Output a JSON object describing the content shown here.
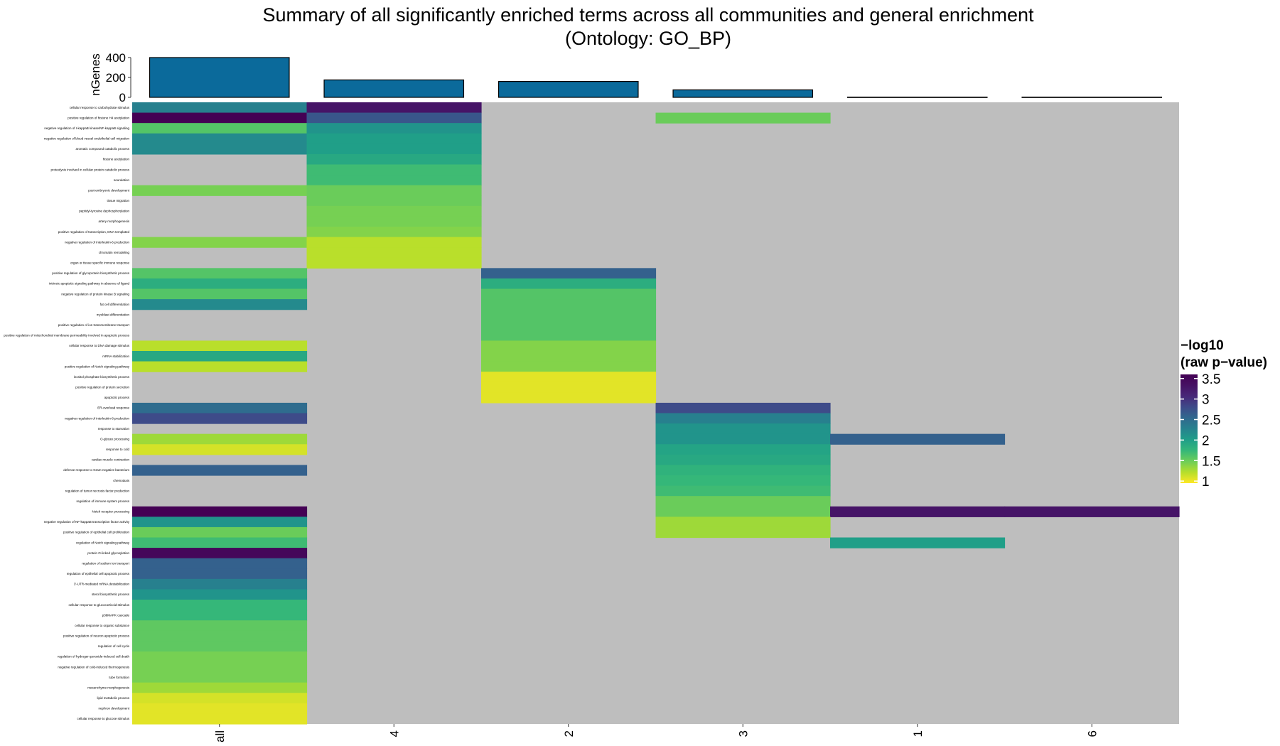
{
  "chart_data": {
    "type": "heatmap",
    "title": "Summary of all significantly enriched terms across all communities and general enrichment",
    "subtitle": "(Ontology: GO_BP)",
    "columns": [
      "all",
      "4",
      "2",
      "3",
      "1",
      "6"
    ],
    "bar_panel": {
      "type": "bar",
      "ylabel": "nGenes",
      "yticks": [
        0,
        200,
        400
      ],
      "ylim": [
        0,
        400
      ],
      "values": [
        400,
        175,
        160,
        75,
        2,
        2
      ],
      "fill": "#0b6a9b"
    },
    "legend": {
      "title_line1": "−log10",
      "title_line2": "(raw p−value)",
      "ticks": [
        "3.5",
        "3",
        "2.5",
        "2",
        "1.5",
        "1"
      ],
      "tick_values": [
        3.5,
        3,
        2.5,
        2,
        1.5,
        1
      ],
      "range": [
        0.95,
        3.6
      ],
      "na_color": "#bebebe"
    },
    "rows": [
      "cellular response to carbohydrate stimulus",
      "positive regulation of histone H4 acetylation",
      "negative regulation of I-kappaB kinase/NF-kappaB signaling",
      "negative regulation of blood vessel endothelial cell migration",
      "aromatic compound catabolic process",
      "histone acetylation",
      "proteolysis involved in cellular protein catabolic process",
      "neurulation",
      "post-embryonic development",
      "tissue migration",
      "peptidyl-tyrosine dephosphorylation",
      "artery morphogenesis",
      "positive regulation of transcription, DNA-templated",
      "negative regulation of interleukin-6 production",
      "chromatin remodeling",
      "organ or tissue specific immune response",
      "positive regulation of glycoprotein biosynthetic process",
      "intrinsic apoptotic signaling pathway in absence of ligand",
      "negative regulation of protein kinase B signaling",
      "fat cell differentiation",
      "myoblast differentiation",
      "positive regulation of ion transmembrane transport",
      "positive regulation of mitochondrial membrane permeability involved in apoptotic process",
      "cellular response to DNA damage stimulus",
      "mRNA stabilization",
      "positive regulation of Notch signaling pathway",
      "inositol phosphate biosynthetic process",
      "positive regulation of protein secretion",
      "apoptotic process",
      "ER-overload response",
      "negative regulation of interleukin-8 production",
      "response to starvation",
      "O-glycan processing",
      "response to cold",
      "cardiac muscle contraction",
      "defense response to Gram-negative bacterium",
      "chemotaxis",
      "regulation of tumor necrosis factor production",
      "regulation of immune system process",
      "Notch receptor processing",
      "negative regulation of NF-kappaB transcription factor activity",
      "positive regulation of epithelial cell proliferation",
      "regulation of Notch signaling pathway",
      "protein O-linked glycosylation",
      "regulation of sodium ion transport",
      "regulation of epithelial cell apoptotic process",
      "3'-UTR-mediated mRNA destabilization",
      "sterol biosynthetic process",
      "cellular response to glucocorticoid stimulus",
      "p38MAPK cascade",
      "cellular response to organic substance",
      "positive regulation of neuron apoptotic process",
      "regulation of cell cycle",
      "regulation of hydrogen peroxide-induced cell death",
      "negative regulation of cold-induced thermogenesis",
      "tube formation",
      "mesenchyme morphogenesis",
      "lipid metabolic process",
      "nephron development",
      "cellular response to glucose stimulus"
    ],
    "values": [
      [
        2.3,
        3.3,
        null,
        null,
        null,
        null
      ],
      [
        3.6,
        2.7,
        null,
        1.5,
        null,
        null
      ],
      [
        1.6,
        2.1,
        null,
        null,
        null,
        null
      ],
      [
        2.2,
        2.0,
        null,
        null,
        null,
        null
      ],
      [
        2.2,
        2.0,
        null,
        null,
        null,
        null
      ],
      [
        null,
        1.9,
        null,
        null,
        null,
        null
      ],
      [
        null,
        1.7,
        null,
        null,
        null,
        null
      ],
      [
        null,
        1.7,
        null,
        null,
        null,
        null
      ],
      [
        1.45,
        1.5,
        null,
        null,
        null,
        null
      ],
      [
        null,
        1.5,
        null,
        null,
        null,
        null
      ],
      [
        null,
        1.45,
        null,
        null,
        null,
        null
      ],
      [
        null,
        1.45,
        null,
        null,
        null,
        null
      ],
      [
        null,
        1.4,
        null,
        null,
        null,
        null
      ],
      [
        1.4,
        1.2,
        null,
        null,
        null,
        null
      ],
      [
        null,
        1.2,
        null,
        null,
        null,
        null
      ],
      [
        null,
        1.2,
        null,
        null,
        null,
        null
      ],
      [
        1.6,
        null,
        2.6,
        null,
        null,
        null
      ],
      [
        1.85,
        null,
        1.85,
        null,
        null,
        null
      ],
      [
        1.6,
        null,
        1.6,
        null,
        null,
        null
      ],
      [
        2.2,
        null,
        1.6,
        null,
        null,
        null
      ],
      [
        null,
        null,
        1.6,
        null,
        null,
        null
      ],
      [
        null,
        null,
        1.6,
        null,
        null,
        null
      ],
      [
        null,
        null,
        1.6,
        null,
        null,
        null
      ],
      [
        1.2,
        null,
        1.4,
        null,
        null,
        null
      ],
      [
        1.9,
        null,
        1.4,
        null,
        null,
        null
      ],
      [
        1.2,
        null,
        1.4,
        null,
        null,
        null
      ],
      [
        null,
        null,
        1.05,
        null,
        null,
        null
      ],
      [
        null,
        null,
        1.05,
        null,
        null,
        null
      ],
      [
        null,
        null,
        1.05,
        null,
        null,
        null
      ],
      [
        2.5,
        null,
        null,
        2.8,
        null,
        null
      ],
      [
        2.8,
        null,
        null,
        2.3,
        null,
        null
      ],
      [
        null,
        null,
        null,
        2.1,
        null,
        null
      ],
      [
        1.3,
        null,
        null,
        2.1,
        2.6,
        null
      ],
      [
        1.1,
        null,
        null,
        1.95,
        null,
        null
      ],
      [
        null,
        null,
        null,
        1.9,
        null,
        null
      ],
      [
        2.6,
        null,
        null,
        1.8,
        null,
        null
      ],
      [
        null,
        null,
        null,
        1.75,
        null,
        null
      ],
      [
        null,
        null,
        null,
        1.7,
        null,
        null
      ],
      [
        null,
        null,
        null,
        1.5,
        null,
        null
      ],
      [
        3.6,
        null,
        null,
        1.5,
        3.3,
        3.3
      ],
      [
        2.1,
        null,
        null,
        1.3,
        null,
        null
      ],
      [
        1.5,
        null,
        null,
        1.3,
        null,
        null
      ],
      [
        1.7,
        null,
        null,
        null,
        2.0,
        null
      ],
      [
        3.5,
        null,
        null,
        null,
        null,
        null
      ],
      [
        2.6,
        null,
        null,
        null,
        null,
        null
      ],
      [
        2.6,
        null,
        null,
        null,
        null,
        null
      ],
      [
        2.3,
        null,
        null,
        null,
        null,
        null
      ],
      [
        2.1,
        null,
        null,
        null,
        null,
        null
      ],
      [
        1.75,
        null,
        null,
        null,
        null,
        null
      ],
      [
        1.75,
        null,
        null,
        null,
        null,
        null
      ],
      [
        1.55,
        null,
        null,
        null,
        null,
        null
      ],
      [
        1.55,
        null,
        null,
        null,
        null,
        null
      ],
      [
        1.55,
        null,
        null,
        null,
        null,
        null
      ],
      [
        1.45,
        null,
        null,
        null,
        null,
        null
      ],
      [
        1.45,
        null,
        null,
        null,
        null,
        null
      ],
      [
        1.45,
        null,
        null,
        null,
        null,
        null
      ],
      [
        1.3,
        null,
        null,
        null,
        null,
        null
      ],
      [
        1.1,
        null,
        null,
        null,
        null,
        null
      ],
      [
        1.05,
        null,
        null,
        null,
        null,
        null
      ],
      [
        1.05,
        null,
        null,
        null,
        null,
        null
      ]
    ]
  }
}
